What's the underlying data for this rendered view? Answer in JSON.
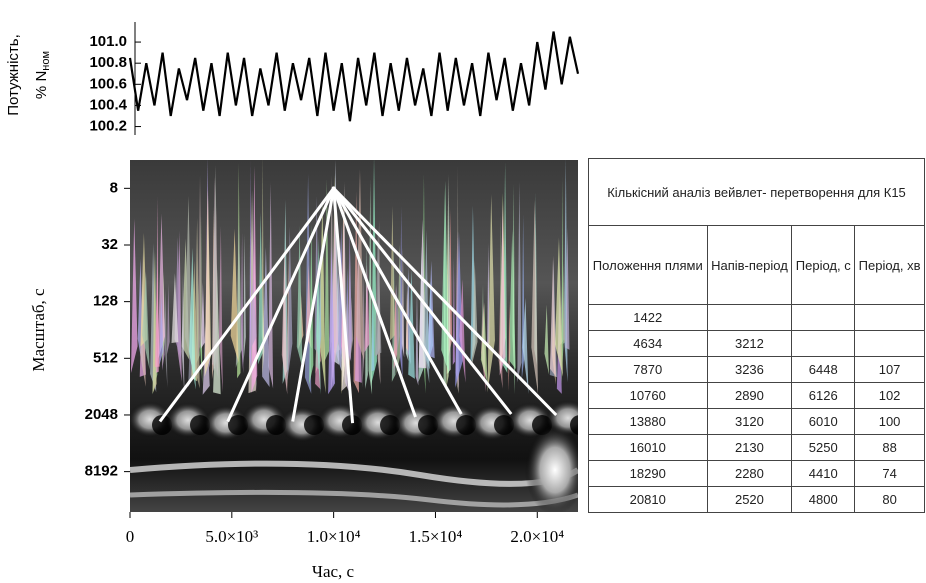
{
  "chart_data": [
    {
      "type": "line",
      "ylabel": "Потужність,",
      "ylabel_unit": "% N",
      "ylabel_subscript": "ном",
      "x": [
        0,
        400,
        800,
        1200,
        1600,
        2000,
        2400,
        2800,
        3200,
        3600,
        4000,
        4400,
        4800,
        5200,
        5600,
        6000,
        6400,
        6800,
        7200,
        7600,
        8000,
        8400,
        8800,
        9200,
        9600,
        10000,
        10400,
        10800,
        11200,
        11600,
        12000,
        12400,
        12800,
        13200,
        13600,
        14000,
        14400,
        14800,
        15200,
        15600,
        16000,
        16400,
        16800,
        17200,
        17600,
        18000,
        18400,
        18800,
        19200,
        19600,
        20000,
        20400,
        20800,
        21200,
        21600,
        22000
      ],
      "values": [
        100.85,
        100.35,
        100.8,
        100.4,
        100.9,
        100.3,
        100.75,
        100.45,
        100.85,
        100.35,
        100.8,
        100.3,
        100.9,
        100.4,
        100.85,
        100.3,
        100.75,
        100.4,
        100.9,
        100.35,
        100.8,
        100.45,
        100.85,
        100.3,
        100.9,
        100.35,
        100.8,
        100.25,
        100.85,
        100.4,
        100.9,
        100.3,
        100.8,
        100.35,
        100.85,
        100.4,
        100.75,
        100.3,
        100.9,
        100.35,
        100.85,
        100.4,
        100.8,
        100.3,
        100.9,
        100.45,
        100.85,
        100.35,
        100.8,
        100.4,
        101.0,
        100.55,
        101.1,
        100.6,
        101.05,
        100.7
      ],
      "color": "#000000",
      "xlim": [
        0,
        22000
      ],
      "ylim": [
        100.12,
        101.19
      ],
      "yticks": [
        100.2,
        100.4,
        100.6,
        100.8,
        {
          "value": 101,
          "label": "101.0"
        }
      ]
    },
    {
      "type": "scalogram",
      "xlabel": "Час, с",
      "ylabel": "Масштаб, с",
      "xlim": [
        0,
        22000
      ],
      "ylim": [
        4,
        22000
      ],
      "log_y": true,
      "inverted_y": true,
      "xticks": [
        0,
        {
          "value": 5000,
          "label": "5.0×10³"
        },
        {
          "value": 10000,
          "label": "1.0×10⁴"
        },
        {
          "value": 15000,
          "label": "1.5×10⁴"
        },
        {
          "value": 20000,
          "label": "2.0×10⁴"
        }
      ],
      "yticks": [
        8,
        32,
        128,
        512,
        2048,
        8192
      ],
      "apex": {
        "x": 10000,
        "scale": 8
      },
      "spots": {
        "x": [
          1470,
          4800,
          7990,
          10930,
          14020,
          16270,
          18720,
          20930
        ],
        "scale": [
          2400,
          2400,
          2400,
          2500,
          2150,
          2000,
          2000,
          2050
        ]
      },
      "line_color": "#ffffff"
    }
  ],
  "table": {
    "title": "Кількісний аналіз вейвлет- перетворення для К15",
    "headers": [
      "Положення плями",
      "Напів-період",
      "Період, с",
      "Період, хв"
    ],
    "rows": [
      [
        1422,
        null,
        null,
        null
      ],
      [
        4634,
        3212,
        null,
        null
      ],
      [
        7870,
        3236,
        6448,
        107
      ],
      [
        10760,
        2890,
        6126,
        102
      ],
      [
        13880,
        3120,
        6010,
        100
      ],
      [
        16010,
        2130,
        5250,
        88
      ],
      [
        18290,
        2280,
        4410,
        74
      ],
      [
        20810,
        2520,
        4800,
        80
      ]
    ]
  }
}
